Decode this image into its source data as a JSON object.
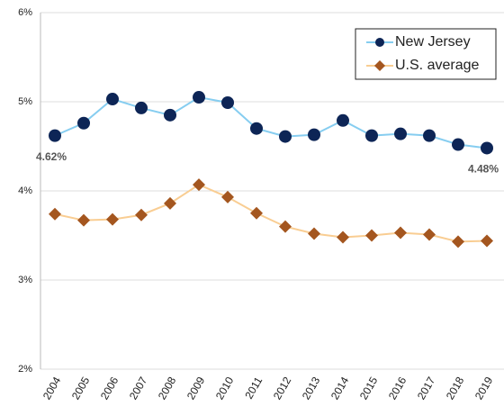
{
  "chart_data": {
    "type": "line",
    "categories": [
      "2004",
      "2005",
      "2006",
      "2007",
      "2008",
      "2009",
      "2010",
      "2011",
      "2012",
      "2013",
      "2014",
      "2015",
      "2016",
      "2017",
      "2018",
      "2019"
    ],
    "series": [
      {
        "name": "New Jersey",
        "color": "#86cdf0",
        "marker_color": "#0d2556",
        "marker": "circle",
        "values": [
          4.62,
          4.76,
          5.03,
          4.93,
          4.85,
          5.05,
          4.99,
          4.7,
          4.61,
          4.63,
          4.79,
          4.62,
          4.64,
          4.62,
          4.52,
          4.48
        ],
        "value_labels": [
          "4.62%",
          null,
          null,
          null,
          null,
          null,
          null,
          null,
          null,
          null,
          null,
          null,
          null,
          null,
          null,
          "4.48%"
        ]
      },
      {
        "name": "U.S. average",
        "color": "#f9cd92",
        "marker_color": "#a4561f",
        "marker": "diamond",
        "values": [
          3.74,
          3.67,
          3.68,
          3.73,
          3.86,
          4.07,
          3.93,
          3.75,
          3.6,
          3.52,
          3.48,
          3.5,
          3.53,
          3.51,
          3.43,
          3.44
        ]
      }
    ],
    "ylim": [
      2,
      6
    ],
    "yticks": [
      {
        "value": 2,
        "label": "2%"
      },
      {
        "value": 3,
        "label": "3%"
      },
      {
        "value": 4,
        "label": "4%"
      },
      {
        "value": 5,
        "label": "5%"
      },
      {
        "value": 6,
        "label": "6%"
      }
    ],
    "grid": true,
    "legend": "top-right"
  }
}
